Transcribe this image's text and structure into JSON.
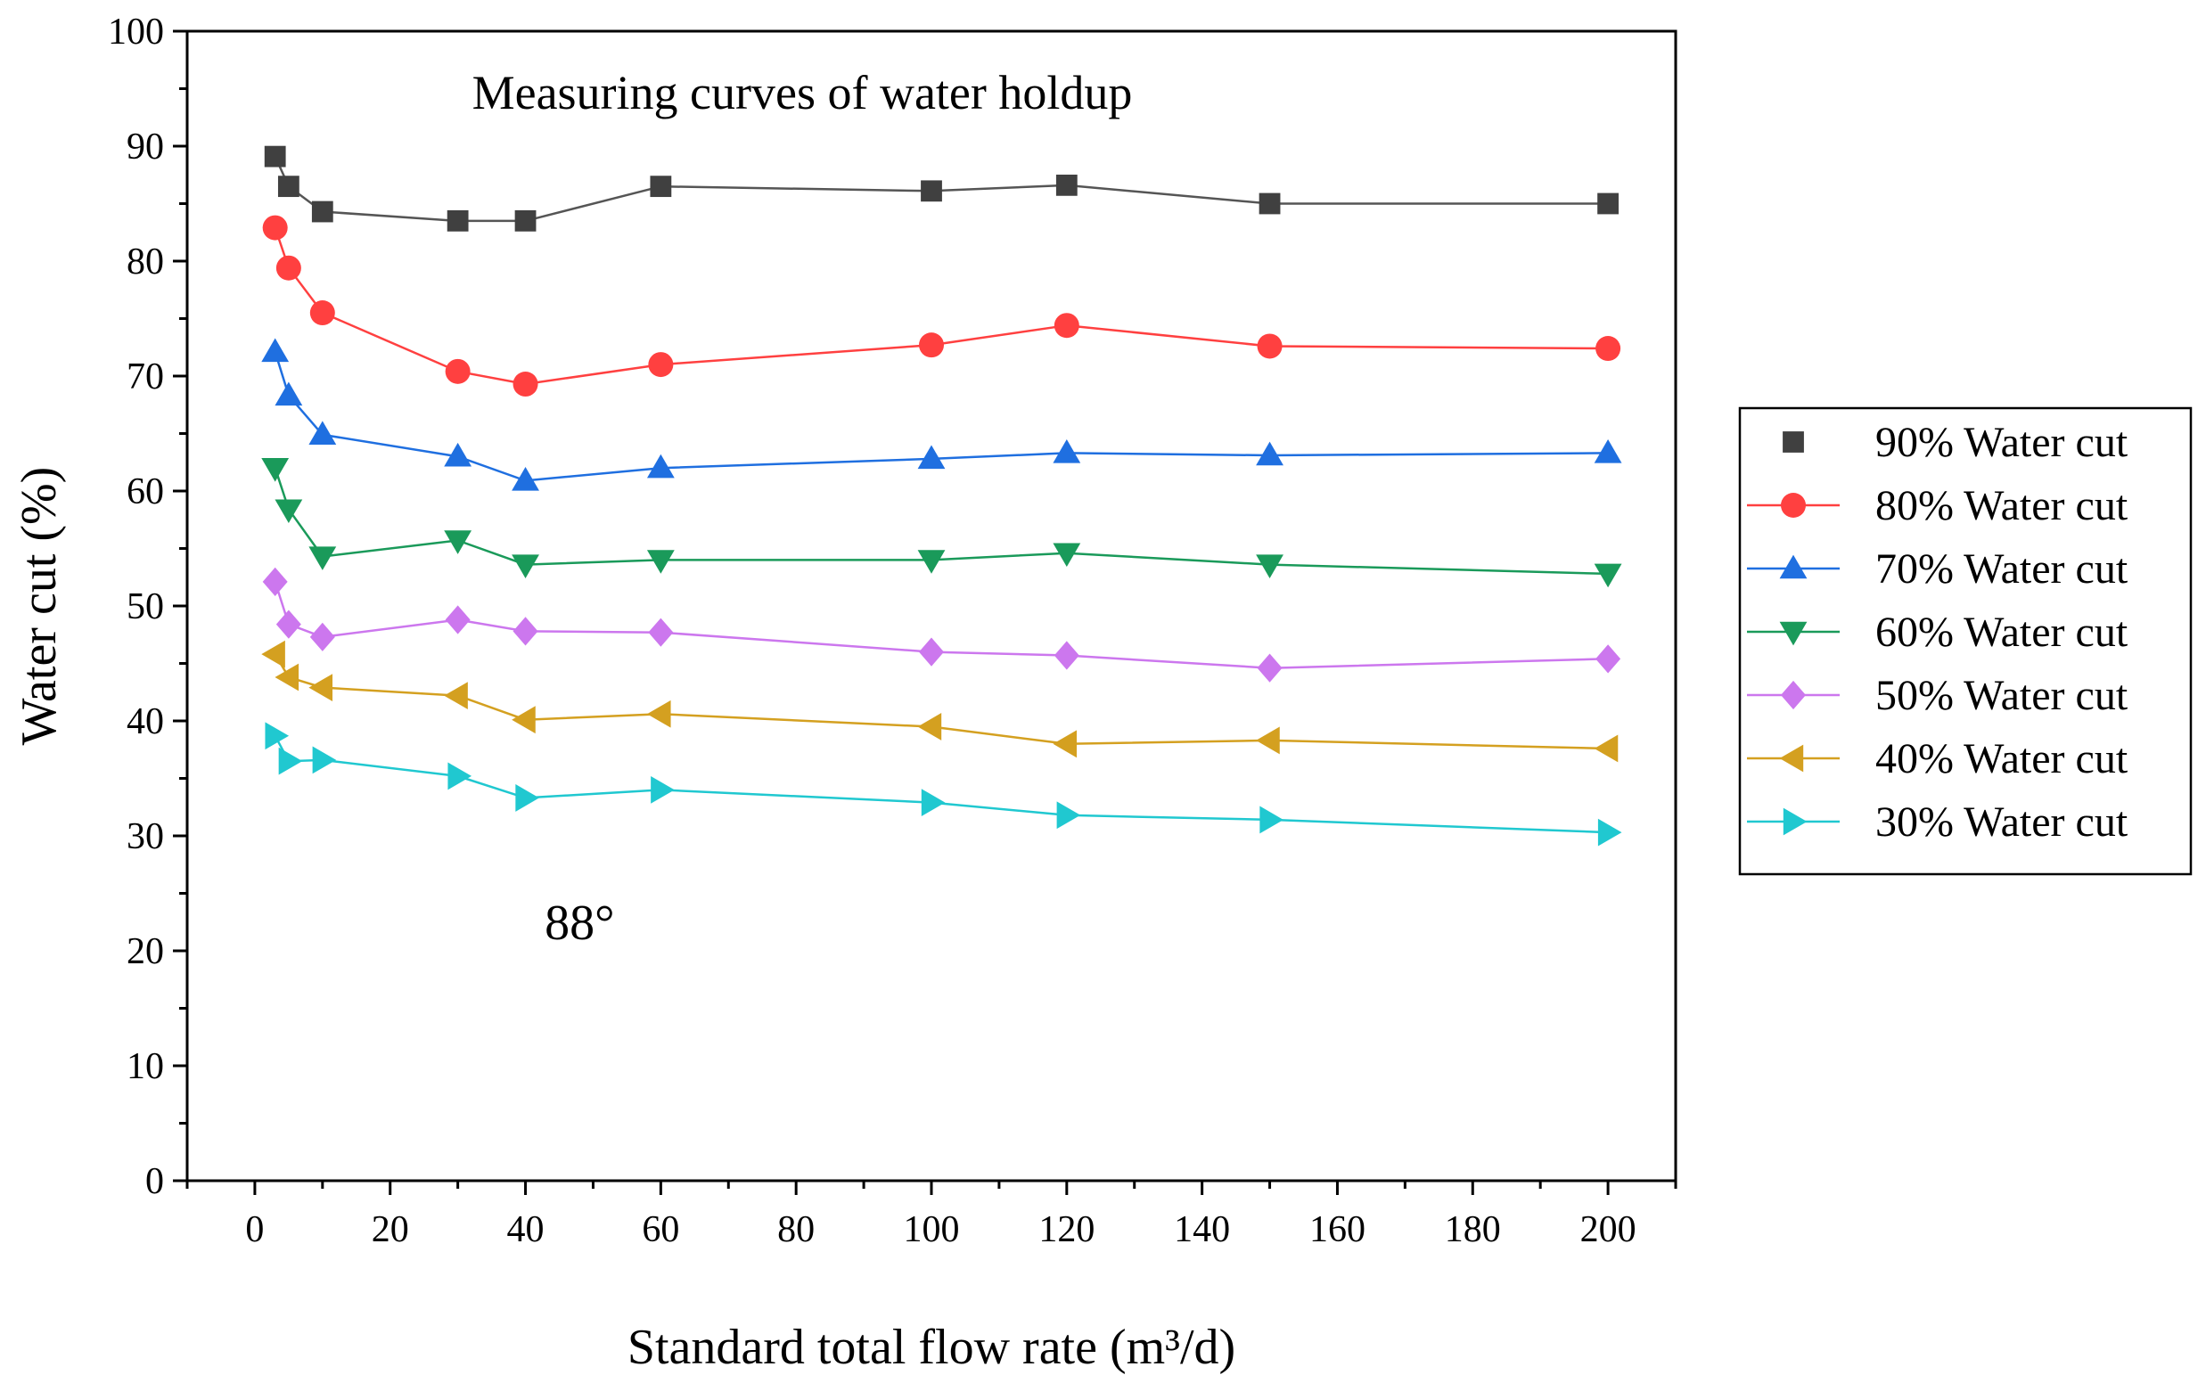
{
  "chart_data": {
    "type": "line",
    "title": "Measuring curves of water holdup",
    "annotation": "88°",
    "xlabel": "Standard total flow rate (m³/d)",
    "ylabel": "Water cut (%)",
    "xlim": [
      -10,
      210
    ],
    "ylim": [
      0,
      100
    ],
    "xticks": [
      0,
      20,
      40,
      60,
      80,
      100,
      120,
      140,
      160,
      180,
      200
    ],
    "yticks": [
      0,
      10,
      20,
      30,
      40,
      50,
      60,
      70,
      80,
      90,
      100
    ],
    "x": [
      3,
      5,
      10,
      30,
      40,
      60,
      100,
      120,
      150,
      200
    ],
    "legend_position": "right",
    "series": [
      {
        "name": "90% Water cut",
        "marker": "square",
        "color": "#404040",
        "line_color": "#555555",
        "values": [
          89.1,
          86.5,
          84.3,
          83.5,
          83.5,
          86.5,
          86.1,
          86.6,
          85.0,
          85.0
        ]
      },
      {
        "name": "80% Water cut",
        "marker": "circle",
        "color": "#ff4040",
        "line_color": "#ff4040",
        "values": [
          82.9,
          79.4,
          75.5,
          70.4,
          69.3,
          71.0,
          72.7,
          74.4,
          72.6,
          72.4
        ]
      },
      {
        "name": "70% Water cut",
        "marker": "triangle-up",
        "color": "#1f6fe0",
        "line_color": "#1f6fe0",
        "values": [
          72.1,
          68.3,
          64.9,
          63.0,
          60.9,
          62.0,
          62.8,
          63.3,
          63.1,
          63.3
        ]
      },
      {
        "name": "60% Water cut",
        "marker": "triangle-down",
        "color": "#1a9a5a",
        "line_color": "#1a9a5a",
        "values": [
          62.0,
          58.4,
          54.3,
          55.7,
          53.6,
          54.0,
          54.0,
          54.6,
          53.6,
          52.8
        ]
      },
      {
        "name": "50% Water cut",
        "marker": "diamond",
        "color": "#cc77ee",
        "line_color": "#cc77ee",
        "values": [
          52.1,
          48.4,
          47.3,
          48.8,
          47.8,
          47.7,
          46.0,
          45.7,
          44.6,
          45.4
        ]
      },
      {
        "name": "40% Water cut",
        "marker": "triangle-left",
        "color": "#d4a020",
        "line_color": "#d4a020",
        "values": [
          45.8,
          43.8,
          42.9,
          42.2,
          40.1,
          40.6,
          39.5,
          38.0,
          38.3,
          37.6
        ]
      },
      {
        "name": "30% Water cut",
        "marker": "triangle-right",
        "color": "#20c8d0",
        "line_color": "#20c8d0",
        "values": [
          38.7,
          36.5,
          36.6,
          35.2,
          33.3,
          34.0,
          32.9,
          31.8,
          31.4,
          30.3
        ]
      }
    ]
  }
}
